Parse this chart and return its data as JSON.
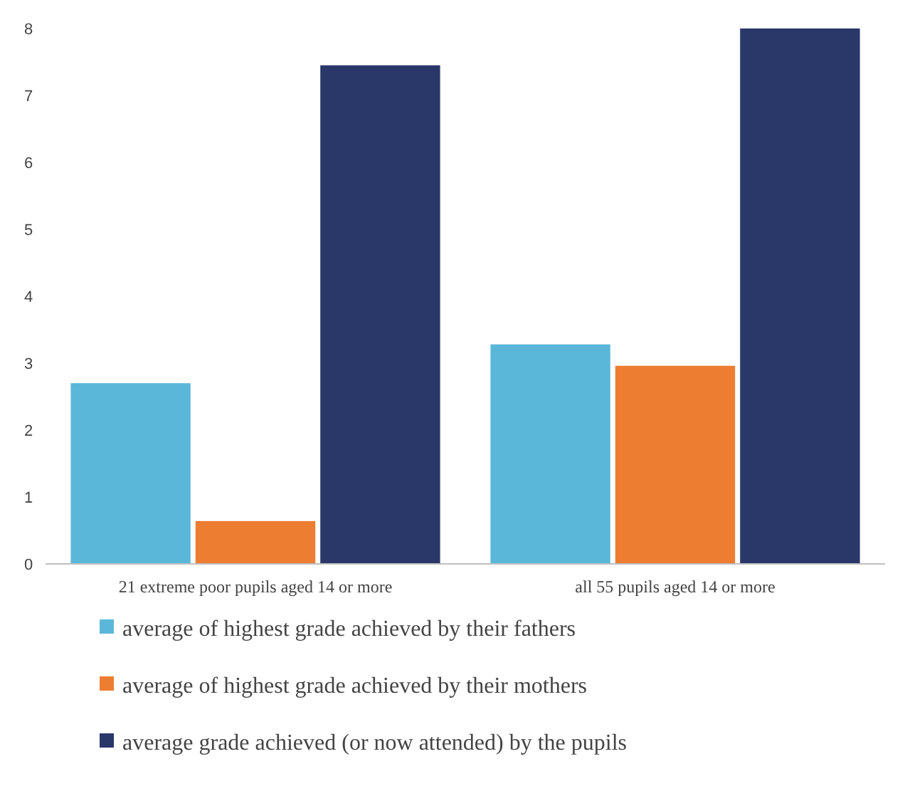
{
  "chart_data": {
    "type": "bar",
    "categories": [
      "21 extreme poor pupils aged 14 or more",
      "all 55 pupils aged 14 or more"
    ],
    "series": [
      {
        "name": "average of highest grade achieved by their fathers",
        "color": "#5bb7da",
        "values": [
          2.7,
          3.28
        ]
      },
      {
        "name": "average of highest grade achieved by their mothers",
        "color": "#ed7d31",
        "values": [
          0.64,
          2.96
        ]
      },
      {
        "name": "average grade achieved (or now attended)  by the pupils",
        "color": "#2a3769",
        "values": [
          7.45,
          8.0
        ]
      }
    ],
    "ylim": [
      0,
      8
    ],
    "yticks": [
      0,
      1,
      2,
      3,
      4,
      5,
      6,
      7,
      8
    ],
    "grid": false,
    "legend": "bottom"
  }
}
